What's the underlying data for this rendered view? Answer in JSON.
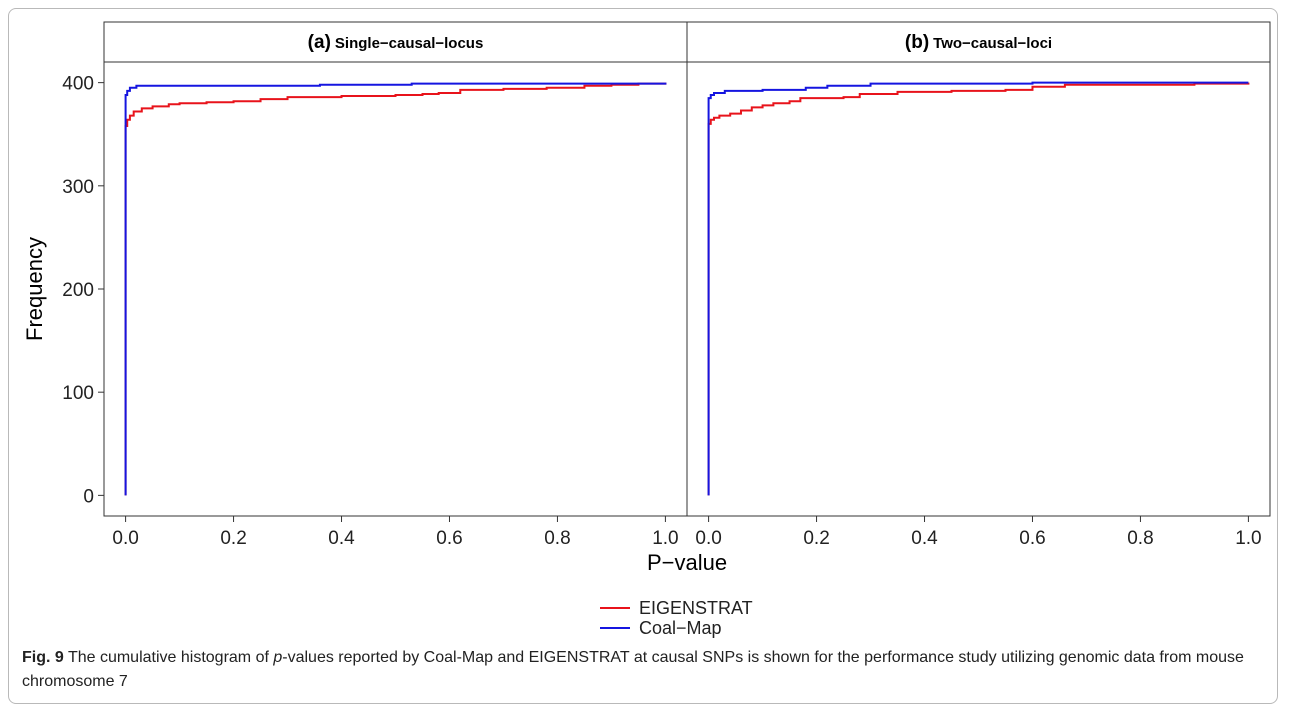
{
  "chart_data": {
    "type": "line",
    "xlabel": "P−value",
    "ylabel": "Frequency",
    "xlim": [
      -0.04,
      1.04
    ],
    "ylim": [
      -20,
      420
    ],
    "x_ticks": [
      0.0,
      0.2,
      0.4,
      0.6,
      0.8,
      1.0
    ],
    "x_tick_labels": [
      "0.0",
      "0.2",
      "0.4",
      "0.6",
      "0.8",
      "1.0"
    ],
    "y_ticks": [
      0,
      100,
      200,
      300,
      400
    ],
    "y_tick_labels": [
      "0",
      "100",
      "200",
      "300",
      "400"
    ],
    "grid": false,
    "legend_position": "bottom",
    "legend": [
      {
        "name": "EIGENSTRAT",
        "color": "#e8131b"
      },
      {
        "name": "Coal−Map",
        "color": "#1515e0"
      }
    ],
    "panels": [
      {
        "label": "(a)",
        "title": "Single−causal−locus",
        "series": [
          {
            "name": "EIGENSTRAT",
            "color": "#e8131b",
            "x": [
              0.0,
              0.0,
              0.003,
              0.008,
              0.015,
              0.03,
              0.05,
              0.08,
              0.1,
              0.15,
              0.2,
              0.25,
              0.3,
              0.4,
              0.45,
              0.5,
              0.55,
              0.58,
              0.62,
              0.7,
              0.78,
              0.85,
              0.9,
              0.95,
              1.0
            ],
            "y": [
              0,
              358,
              364,
              368,
              372,
              375,
              377,
              379,
              380,
              381,
              382,
              384,
              386,
              387,
              387,
              388,
              389,
              390,
              393,
              394,
              395,
              397,
              398,
              399,
              400
            ]
          },
          {
            "name": "Coal−Map",
            "color": "#1515e0",
            "x": [
              0.0,
              0.0,
              0.003,
              0.008,
              0.02,
              0.1,
              0.35,
              0.36,
              0.52,
              0.53,
              0.95,
              1.0
            ],
            "y": [
              0,
              388,
              392,
              395,
              397,
              397,
              397,
              398,
              398,
              399,
              399,
              400
            ]
          }
        ]
      },
      {
        "label": "(b)",
        "title": "Two−causal−loci",
        "series": [
          {
            "name": "EIGENSTRAT",
            "color": "#e8131b",
            "x": [
              0.0,
              0.0,
              0.004,
              0.01,
              0.02,
              0.04,
              0.06,
              0.08,
              0.1,
              0.12,
              0.15,
              0.17,
              0.25,
              0.28,
              0.35,
              0.45,
              0.55,
              0.6,
              0.66,
              0.8,
              0.9,
              0.95,
              1.0
            ],
            "y": [
              0,
              360,
              364,
              366,
              368,
              370,
              373,
              376,
              378,
              380,
              382,
              385,
              386,
              389,
              391,
              392,
              393,
              396,
              398,
              398,
              399,
              399,
              400
            ]
          },
          {
            "name": "Coal−Map",
            "color": "#1515e0",
            "x": [
              0.0,
              0.0,
              0.004,
              0.01,
              0.03,
              0.1,
              0.18,
              0.22,
              0.3,
              0.5,
              0.6,
              1.0
            ],
            "y": [
              0,
              385,
              388,
              390,
              392,
              393,
              395,
              397,
              399,
              399,
              400,
              400
            ]
          }
        ]
      }
    ]
  },
  "caption": {
    "fig_label": "Fig. 9",
    "text_before_italic": " The cumulative histogram of ",
    "italic": "p",
    "text_after_italic": "-values reported by Coal-Map and EIGENSTRAT at causal SNPs is shown for the performance study utilizing genomic data from mouse chromosome 7"
  }
}
